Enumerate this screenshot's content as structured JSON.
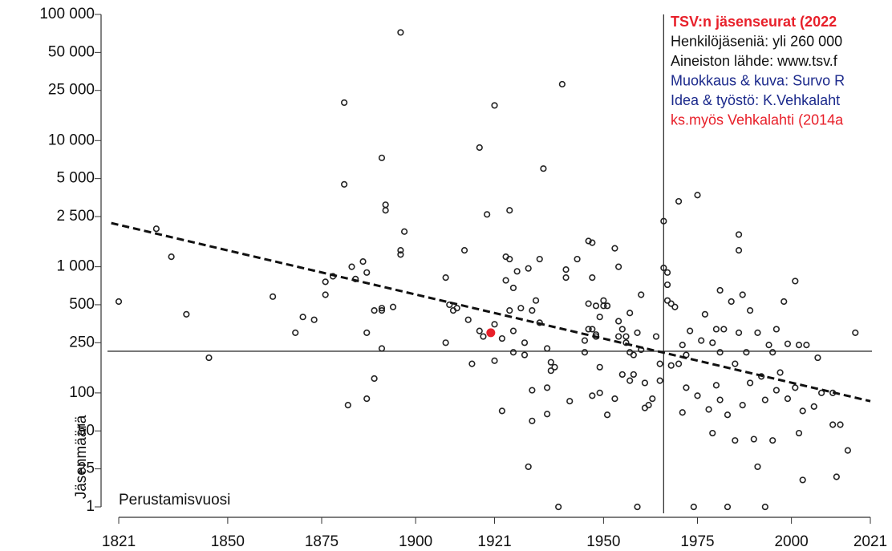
{
  "chart_data": {
    "type": "scatter",
    "y_label": "Jäsenmäärä",
    "x_label": "Perustamisvuosi",
    "info": [
      {
        "text": "TSV:n jäsenseurat (2022",
        "color": "#e8202a"
      },
      {
        "text": "Henkilöjäseniä: yli 260 000",
        "color": "#111111"
      },
      {
        "text": "Aineiston lähde: www.tsv.f",
        "color": "#111111"
      },
      {
        "text": "Muokkaus & kuva: Survo R",
        "color": "#1c2a8c"
      },
      {
        "text": "Idea & työstö: K.Vehkalaht",
        "color": "#1c2a8c"
      },
      {
        "text": "ks.myös Vehkalahti (2014a",
        "color": "#e8202a"
      }
    ],
    "log_y": true,
    "xlim": [
      1816,
      2022
    ],
    "ylim": [
      1,
      100000
    ],
    "xticks": [
      1821,
      1850,
      1875,
      1900,
      1921,
      1950,
      1975,
      2000,
      2021
    ],
    "yticks": [
      {
        "value": 100000,
        "label": "100 000"
      },
      {
        "value": 50000,
        "label": "50 000"
      },
      {
        "value": 25000,
        "label": "25 000"
      },
      {
        "value": 10000,
        "label": "10 000"
      },
      {
        "value": 5000,
        "label": "5 000"
      },
      {
        "value": 2500,
        "label": "2 500"
      },
      {
        "value": 1000,
        "label": "1 000"
      },
      500,
      250,
      100,
      50,
      25,
      1
    ],
    "color": "#222222",
    "x": [
      1821,
      1831,
      1835,
      1839,
      1845,
      1862,
      1868,
      1870,
      1873,
      1876,
      1876,
      1878,
      1881,
      1881,
      1882,
      1883,
      1884,
      1886,
      1887,
      1887,
      1887,
      1889,
      1889,
      1891,
      1891,
      1891,
      1891,
      1892,
      1892,
      1894,
      1896,
      1896,
      1896,
      1897,
      1908,
      1908,
      1909,
      1910,
      1911,
      1913,
      1914,
      1915,
      1917,
      1917,
      1918,
      1919,
      1921,
      1921,
      1921,
      1923,
      1923,
      1924,
      1924,
      1925,
      1925,
      1925,
      1926,
      1926,
      1926,
      1927,
      1928,
      1929,
      1929,
      1930,
      1930,
      1931,
      1931,
      1931,
      1932,
      1933,
      1933,
      1934,
      1935,
      1935,
      1936,
      1936,
      1937,
      1935,
      1938,
      1939,
      1940,
      1940,
      1941,
      1943,
      1945,
      1945,
      1946,
      1946,
      1946,
      1947,
      1947,
      1947,
      1947,
      1948,
      1948,
      1948,
      1949,
      1949,
      1949,
      1950,
      1950,
      1951,
      1951,
      1953,
      1953,
      1954,
      1954,
      1954,
      1955,
      1955,
      1956,
      1956,
      1957,
      1957,
      1957,
      1958,
      1958,
      1959,
      1959,
      1960,
      1960,
      1961,
      1961,
      1962,
      1963,
      1964,
      1965,
      1965,
      1966,
      1966,
      1967,
      1967,
      1967,
      1968,
      1968,
      1969,
      1970,
      1970,
      1971,
      1971,
      1972,
      1972,
      1973,
      1974,
      1975,
      1975,
      1976,
      1977,
      1978,
      1979,
      1979,
      1980,
      1980,
      1981,
      1981,
      1981,
      1982,
      1983,
      1983,
      1984,
      1985,
      1985,
      1986,
      1986,
      1986,
      1987,
      1987,
      1988,
      1989,
      1989,
      1990,
      1991,
      1991,
      1992,
      1993,
      1993,
      1994,
      1995,
      1995,
      1996,
      1996,
      1997,
      1998,
      1999,
      1999,
      2001,
      2001,
      2002,
      2002,
      2003,
      2003,
      2004,
      2006,
      2007,
      2008,
      2011,
      2011,
      2012,
      2013,
      2015,
      2017
    ],
    "values": [
      530,
      2000,
      1200,
      420,
      190,
      580,
      300,
      400,
      380,
      760,
      600,
      840,
      4500,
      20000,
      80,
      1000,
      800,
      1100,
      900,
      300,
      90,
      450,
      130,
      225,
      450,
      7300,
      470,
      3100,
      2800,
      480,
      72000,
      1250,
      1350,
      1900,
      820,
      250,
      500,
      450,
      470,
      1350,
      380,
      170,
      8800,
      310,
      280,
      2600,
      19000,
      350,
      180,
      72,
      270,
      1200,
      780,
      450,
      2800,
      1150,
      680,
      210,
      310,
      920,
      470,
      250,
      200,
      970,
      26,
      450,
      105,
      60,
      540,
      1150,
      360,
      6000,
      110,
      225,
      175,
      150,
      160,
      68,
      1,
      28000,
      950,
      820,
      86,
      1150,
      260,
      210,
      1600,
      510,
      320,
      95,
      820,
      1550,
      320,
      290,
      490,
      280,
      400,
      100,
      160,
      490,
      540,
      490,
      67,
      1400,
      90,
      280,
      370,
      1000,
      140,
      320,
      280,
      250,
      210,
      125,
      430,
      200,
      140,
      1,
      300,
      600,
      220,
      120,
      76,
      80,
      90,
      280,
      125,
      170,
      980,
      2300,
      900,
      720,
      540,
      165,
      510,
      480,
      170,
      3300,
      240,
      70,
      110,
      200,
      310,
      1,
      3700,
      95,
      260,
      420,
      74,
      250,
      48,
      320,
      115,
      650,
      88,
      210,
      320,
      67,
      1,
      530,
      170,
      42,
      300,
      1800,
      1350,
      80,
      600,
      210,
      450,
      120,
      43,
      26,
      300,
      135,
      88,
      1,
      240,
      210,
      42,
      320,
      105,
      145,
      530,
      90,
      245,
      110,
      770,
      48,
      240,
      72,
      18,
      240,
      78,
      190,
      100,
      56,
      100,
      20,
      56,
      35,
      300
    ],
    "highlight": {
      "x": 1920,
      "y": 300,
      "color": "#e8202a"
    },
    "trend": {
      "x": [
        1819,
        2021
      ],
      "y": [
        2220,
        86
      ]
    },
    "reference": {
      "x": 1966,
      "y": 214
    }
  }
}
